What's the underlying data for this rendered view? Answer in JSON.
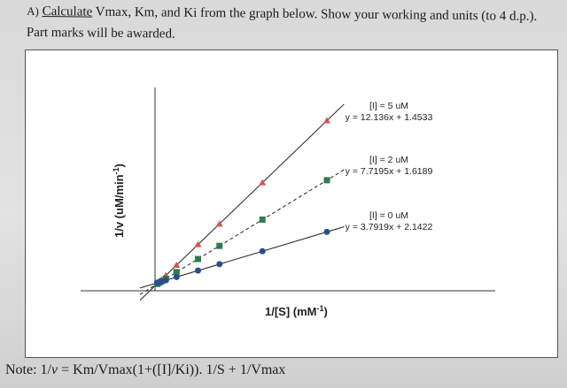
{
  "question": {
    "label": "A)",
    "verb": "Calculate",
    "rest": " Vmax, Km, and Ki from the graph below. Show your working and units (to 4 d.p.).",
    "line2": "Part marks will be awarded."
  },
  "graph": {
    "xlabel": "1/[S] (mM",
    "xlabel_sup": "-1",
    "xlabel_close": ")",
    "ylabel": "1/v (uM/min",
    "ylabel_sup": "-1",
    "ylabel_close": ")"
  },
  "chart_data": {
    "type": "scatter",
    "xlabel": "1/[S] (mM-1)",
    "ylabel": "1/v (uM/min-1)",
    "series": [
      {
        "name": "[I] = 5 uM",
        "equation": "y = 12.136x + 1.4533",
        "slope": 12.136,
        "intercept": 1.4533,
        "marker": "triangle",
        "color": "#d9534a",
        "x": [
          0.05,
          0.1,
          0.15,
          0.25,
          0.5,
          1,
          1.5,
          2.5,
          4
        ]
      },
      {
        "name": "[I] = 2 uM",
        "equation": "y = 7.7195x + 1.6189",
        "slope": 7.7195,
        "intercept": 1.6189,
        "marker": "square",
        "color": "#2e7d4f",
        "x": [
          0.05,
          0.1,
          0.15,
          0.25,
          0.5,
          1,
          1.5,
          2.5,
          4
        ]
      },
      {
        "name": "[I] = 0 uM",
        "equation": "y = 3.7919x + 2.1422",
        "slope": 3.7919,
        "intercept": 2.1422,
        "marker": "circle",
        "color": "#2a4f8f",
        "x": [
          0.05,
          0.1,
          0.15,
          0.25,
          0.5,
          1,
          1.5,
          2.5,
          4
        ]
      }
    ]
  },
  "note": {
    "prefix": "Note: 1/",
    "v": "v",
    "formula": " = Km/Vmax(1+([I]/Ki)). 1/S + 1/Vmax"
  }
}
